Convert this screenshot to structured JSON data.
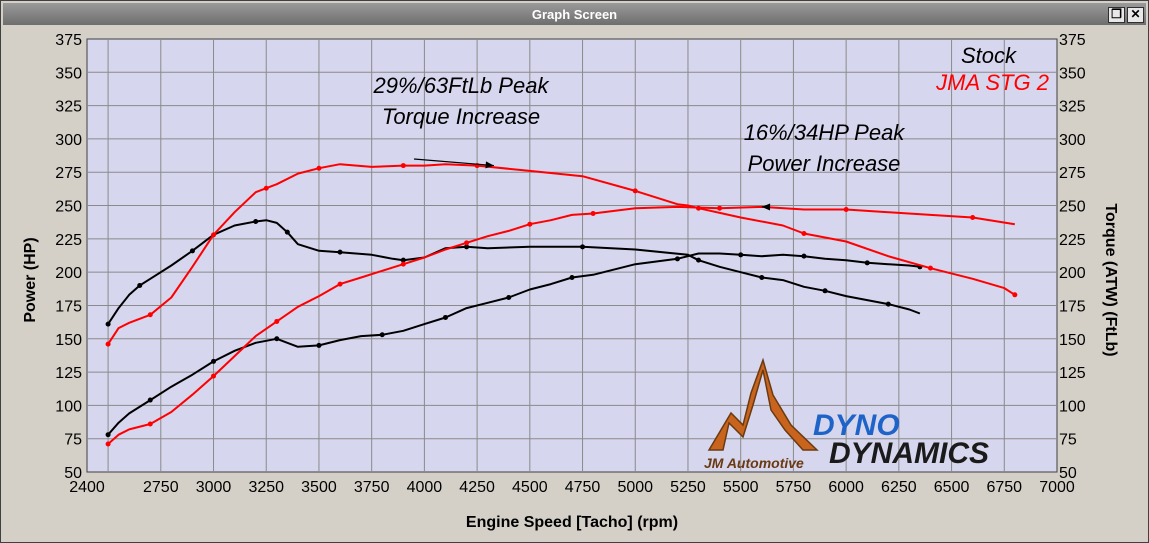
{
  "window": {
    "title": "Graph Screen",
    "restore_glyph": "❐",
    "close_glyph": "✕"
  },
  "colors": {
    "plot_bg": "#d6d6ee",
    "grid": "#8a8a8a",
    "stock": "#000000",
    "tuned": "#ff0000",
    "logo_orange": "#c8641e",
    "logo_blue": "#1e64c8"
  },
  "chart_data": {
    "type": "line",
    "xlabel": "Engine Speed [Tacho] (rpm)",
    "ylabel_left": "Power (HP)",
    "ylabel_right": "Torque (ATW) (FtLb)",
    "xlim": [
      2400,
      7000
    ],
    "ylim": [
      50,
      375
    ],
    "x_ticks": [
      2400,
      2750,
      3000,
      3250,
      3500,
      3750,
      4000,
      4250,
      4500,
      4750,
      5000,
      5250,
      5500,
      5750,
      6000,
      6250,
      6500,
      6750,
      7000
    ],
    "y_ticks": [
      50,
      75,
      100,
      125,
      150,
      175,
      200,
      225,
      250,
      275,
      300,
      325,
      350,
      375
    ],
    "grid": true,
    "legend": {
      "placement": "top-right",
      "entries": [
        "Stock",
        "JMA STG 2"
      ]
    },
    "annotations": [
      {
        "lines": [
          "29%/63FtLb Peak",
          "Torque Increase"
        ],
        "arrow_to": [
          4330,
          280
        ]
      },
      {
        "lines": [
          "16%/34HP Peak",
          "Power Increase"
        ],
        "arrow_to": [
          5600,
          249
        ]
      }
    ],
    "logo": {
      "left_text": "JM Automotive",
      "right_top": "DYNO",
      "right_bottom": "DYNAMICS"
    },
    "series": [
      {
        "name": "Stock",
        "measure": "Torque",
        "x": [
          2500,
          2550,
          2600,
          2650,
          2700,
          2800,
          2900,
          3000,
          3100,
          3200,
          3250,
          3300,
          3350,
          3400,
          3500,
          3600,
          3750,
          3850,
          3900,
          4000,
          4100,
          4200,
          4300,
          4500,
          4750,
          5000,
          5250,
          5300,
          5400,
          5500,
          5600,
          5700,
          5800,
          5900,
          6000,
          6100,
          6200,
          6300,
          6350
        ],
        "y": [
          161,
          173,
          183,
          190,
          195,
          205,
          216,
          228,
          235,
          238,
          239,
          237,
          230,
          221,
          216,
          215,
          213,
          210,
          209,
          211,
          218,
          219,
          218,
          219,
          219,
          217,
          213,
          209,
          204,
          200,
          196,
          194,
          189,
          186,
          182,
          179,
          176,
          172,
          169
        ]
      },
      {
        "name": "Stock",
        "measure": "Power",
        "x": [
          2500,
          2550,
          2600,
          2700,
          2800,
          2900,
          3000,
          3100,
          3200,
          3300,
          3350,
          3400,
          3500,
          3600,
          3700,
          3800,
          3900,
          4000,
          4100,
          4200,
          4300,
          4400,
          4500,
          4600,
          4700,
          4800,
          5000,
          5200,
          5300,
          5400,
          5500,
          5600,
          5700,
          5800,
          5900,
          6000,
          6100,
          6200,
          6300,
          6350
        ],
        "y": [
          78,
          87,
          94,
          104,
          114,
          123,
          133,
          141,
          147,
          150,
          147,
          144,
          145,
          149,
          152,
          153,
          156,
          161,
          166,
          173,
          177,
          181,
          187,
          191,
          196,
          198,
          206,
          210,
          214,
          214,
          213,
          212,
          213,
          212,
          210,
          209,
          207,
          206,
          205,
          204
        ]
      },
      {
        "name": "JMA STG 2",
        "measure": "Torque",
        "x": [
          2500,
          2550,
          2600,
          2700,
          2800,
          2900,
          3000,
          3100,
          3200,
          3250,
          3300,
          3400,
          3500,
          3600,
          3750,
          3900,
          4000,
          4100,
          4250,
          4500,
          4750,
          5000,
          5200,
          5250,
          5300,
          5500,
          5700,
          5800,
          6000,
          6200,
          6400,
          6600,
          6750,
          6800
        ],
        "y": [
          146,
          158,
          162,
          168,
          181,
          204,
          228,
          245,
          260,
          263,
          266,
          274,
          278,
          281,
          279,
          280,
          280,
          281,
          280,
          276,
          272,
          261,
          251,
          250,
          248,
          241,
          235,
          229,
          223,
          212,
          203,
          195,
          188,
          183
        ]
      },
      {
        "name": "JMA STG 2",
        "measure": "Power",
        "x": [
          2500,
          2550,
          2600,
          2700,
          2800,
          2900,
          3000,
          3100,
          3200,
          3300,
          3400,
          3500,
          3600,
          3700,
          3800,
          3900,
          4000,
          4100,
          4200,
          4300,
          4400,
          4500,
          4600,
          4700,
          4800,
          5000,
          5200,
          5400,
          5600,
          5800,
          6000,
          6200,
          6400,
          6600,
          6800
        ],
        "y": [
          71,
          78,
          82,
          86,
          95,
          108,
          122,
          137,
          152,
          163,
          174,
          182,
          191,
          196,
          201,
          206,
          211,
          217,
          222,
          227,
          231,
          236,
          239,
          243,
          244,
          248,
          249,
          248,
          249,
          247,
          247,
          245,
          243,
          241,
          236
        ]
      }
    ]
  }
}
